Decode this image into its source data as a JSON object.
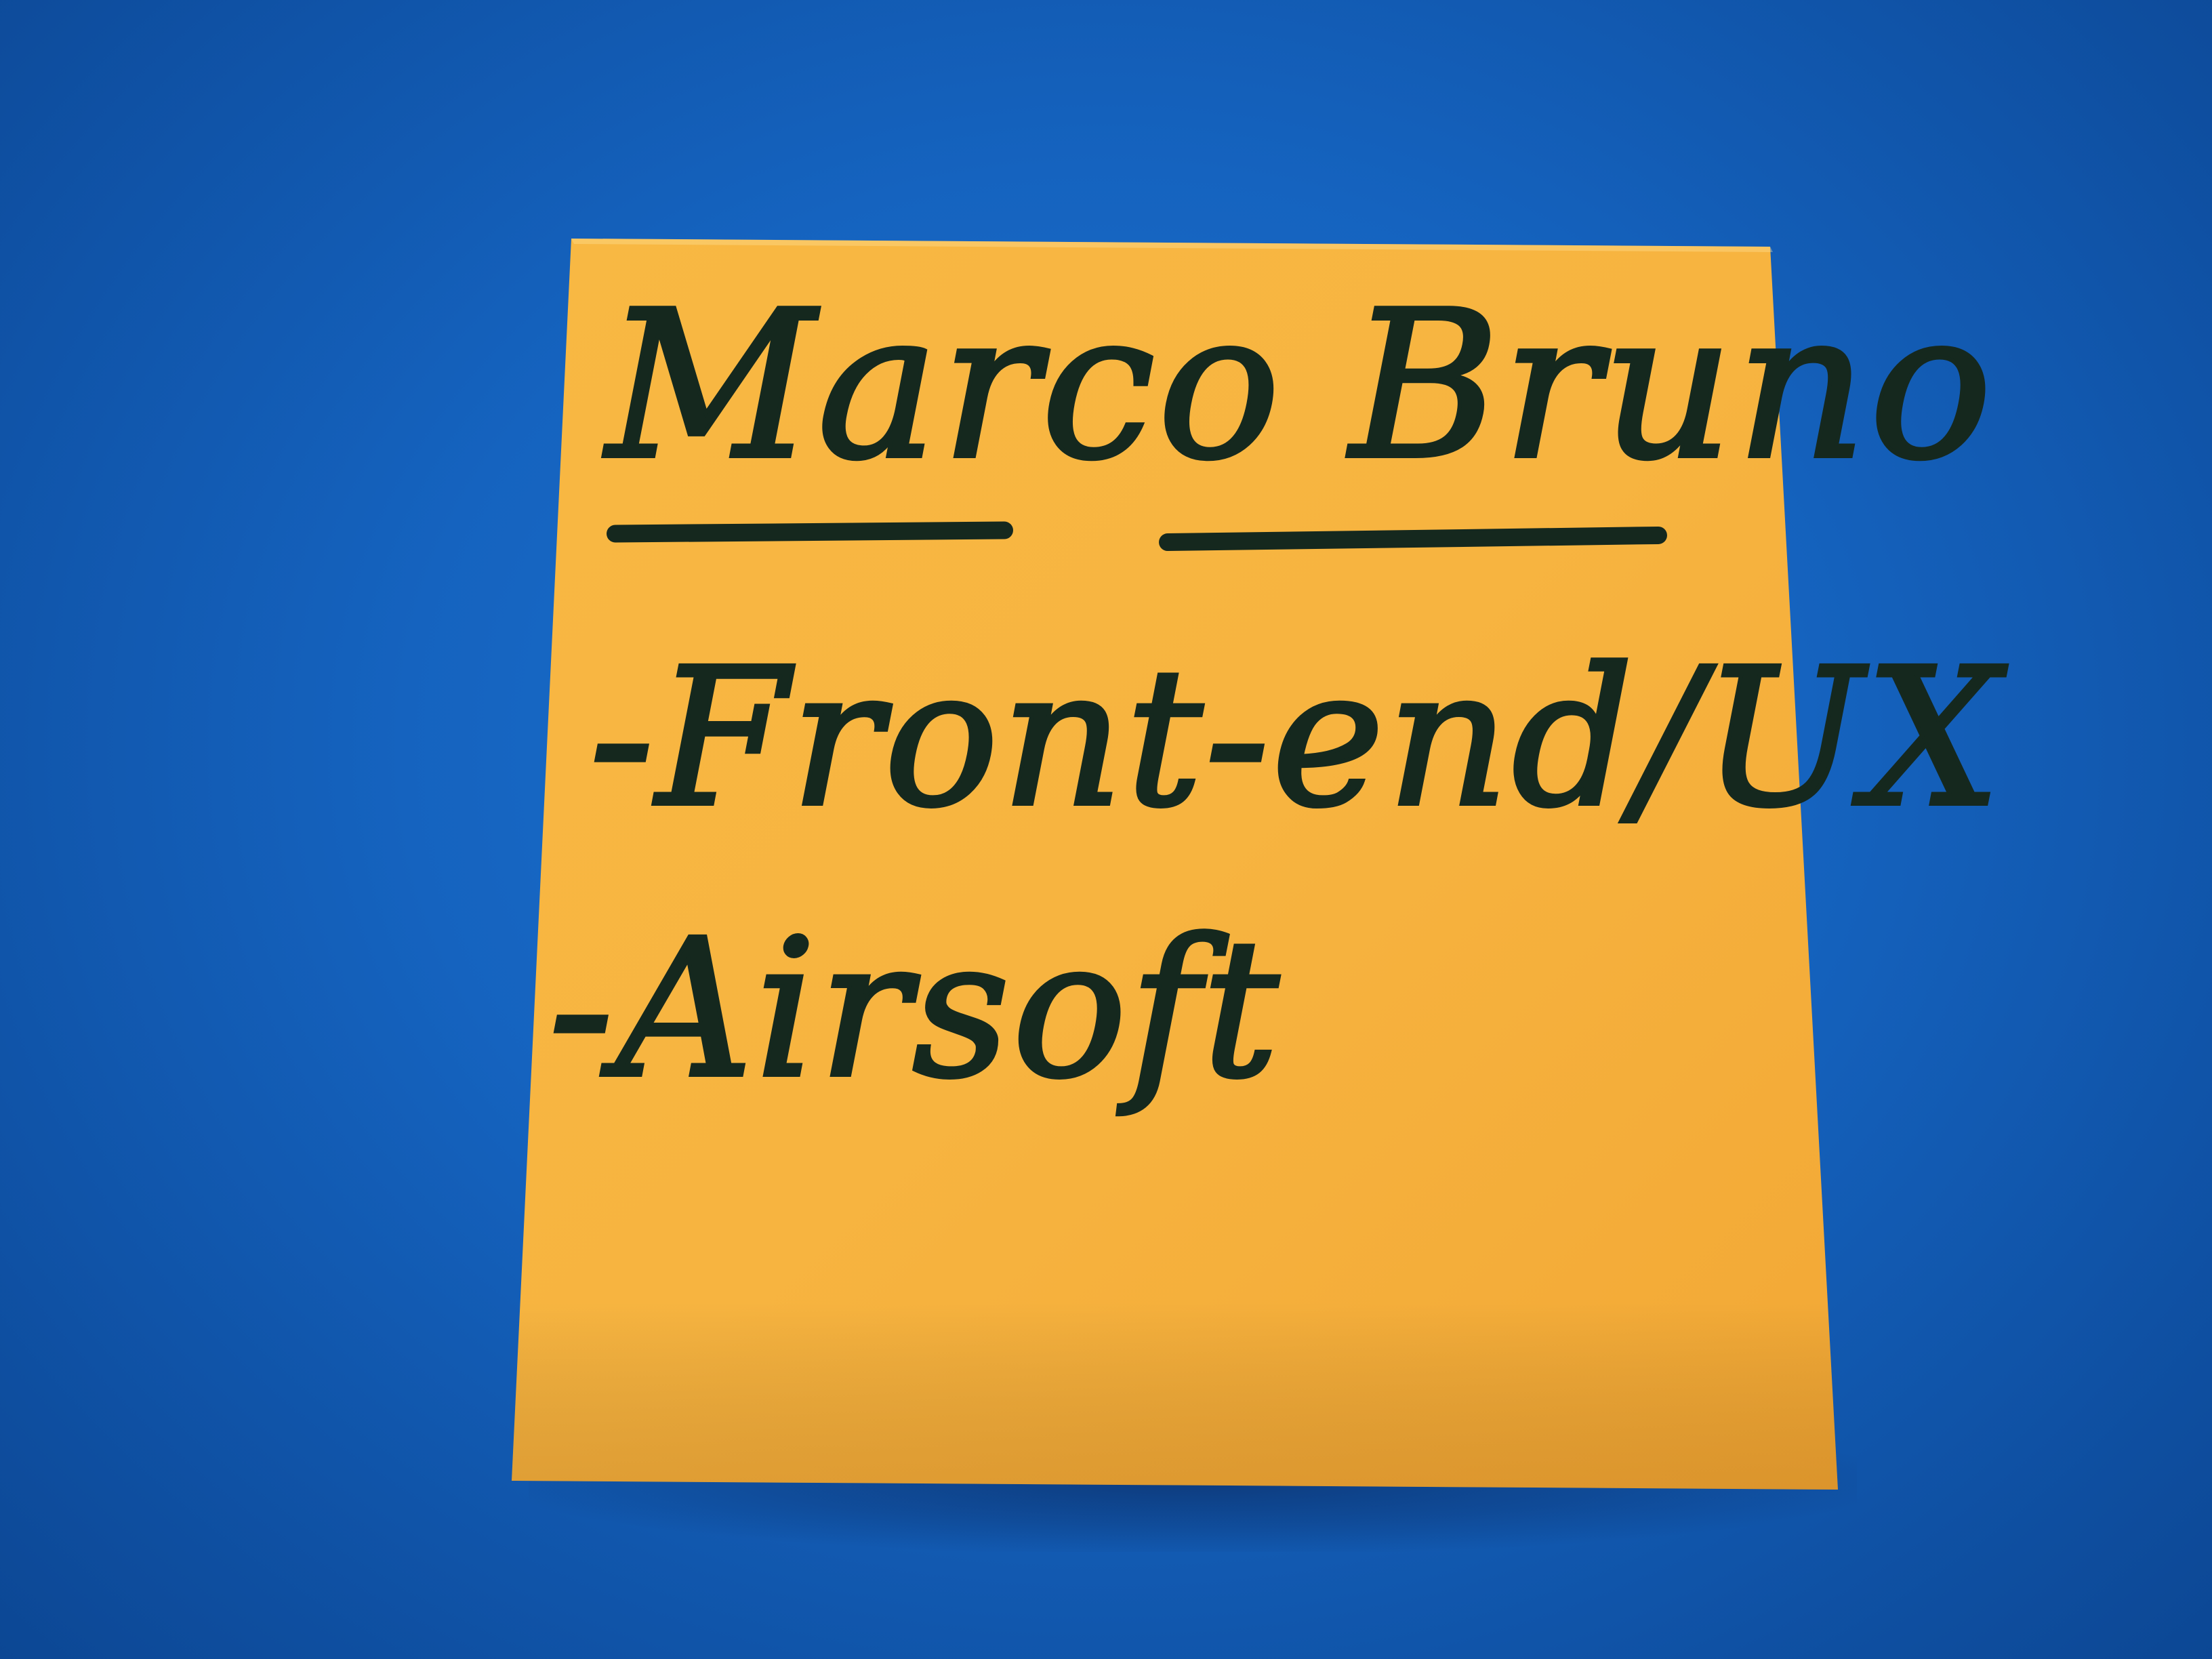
{
  "note": {
    "name": "Marco Bruno",
    "items": [
      "-Front-end/UX",
      "-Airsoft"
    ]
  },
  "colors": {
    "background": "#1563bf",
    "note_paper": "#f7b440",
    "ink": "#15281e"
  }
}
